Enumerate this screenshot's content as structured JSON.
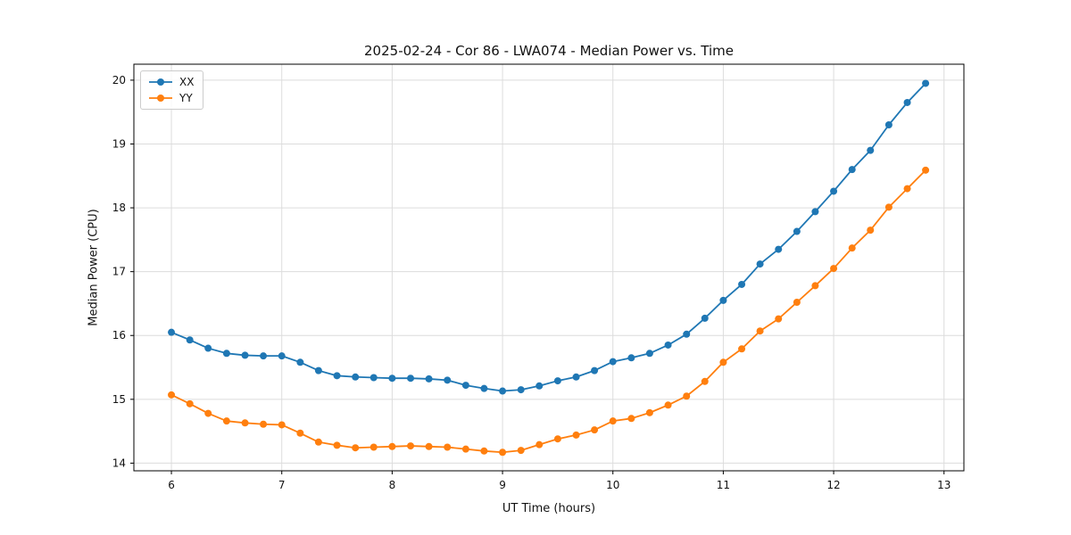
{
  "chart_data": {
    "type": "line",
    "title": "2025-02-24 - Cor 86 - LWA074 - Median Power vs. Time",
    "xlabel": "UT Time (hours)",
    "ylabel": "Median Power (CPU)",
    "xlim": [
      5.66,
      13.18
    ],
    "ylim": [
      13.88,
      20.25
    ],
    "x_ticks": [
      6,
      7,
      8,
      9,
      10,
      11,
      12,
      13
    ],
    "y_ticks": [
      14,
      15,
      16,
      17,
      18,
      19,
      20
    ],
    "grid": true,
    "legend_position": "upper left",
    "marker": "circle",
    "x": [
      6,
      6.167,
      6.333,
      6.5,
      6.667,
      6.833,
      7,
      7.167,
      7.333,
      7.5,
      7.667,
      7.833,
      8,
      8.167,
      8.333,
      8.5,
      8.667,
      8.833,
      9,
      9.167,
      9.333,
      9.5,
      9.667,
      9.833,
      10,
      10.167,
      10.333,
      10.5,
      10.667,
      10.833,
      11,
      11.167,
      11.333,
      11.5,
      11.667,
      11.833,
      12,
      12.167,
      12.333,
      12.5,
      12.667,
      12.833
    ],
    "series": [
      {
        "name": "XX",
        "color": "#1f77b4",
        "values": [
          16.05,
          15.93,
          15.8,
          15.72,
          15.69,
          15.68,
          15.68,
          15.58,
          15.45,
          15.37,
          15.35,
          15.34,
          15.33,
          15.33,
          15.32,
          15.3,
          15.22,
          15.17,
          15.13,
          15.15,
          15.21,
          15.29,
          15.35,
          15.45,
          15.59,
          15.65,
          15.72,
          15.85,
          16.02,
          16.27,
          16.55,
          16.8,
          17.12,
          17.35,
          17.63,
          17.94,
          18.26,
          18.6,
          18.9,
          19.3,
          19.65,
          19.95
        ]
      },
      {
        "name": "YY",
        "color": "#ff7f0e",
        "values": [
          15.07,
          14.93,
          14.78,
          14.66,
          14.63,
          14.61,
          14.6,
          14.47,
          14.33,
          14.28,
          14.24,
          14.25,
          14.26,
          14.27,
          14.26,
          14.25,
          14.22,
          14.19,
          14.17,
          14.2,
          14.29,
          14.38,
          14.44,
          14.52,
          14.66,
          14.7,
          14.79,
          14.91,
          15.05,
          15.28,
          15.58,
          15.79,
          16.07,
          16.26,
          16.52,
          16.78,
          17.05,
          17.37,
          17.65,
          18.01,
          18.3,
          18.59
        ]
      }
    ]
  }
}
